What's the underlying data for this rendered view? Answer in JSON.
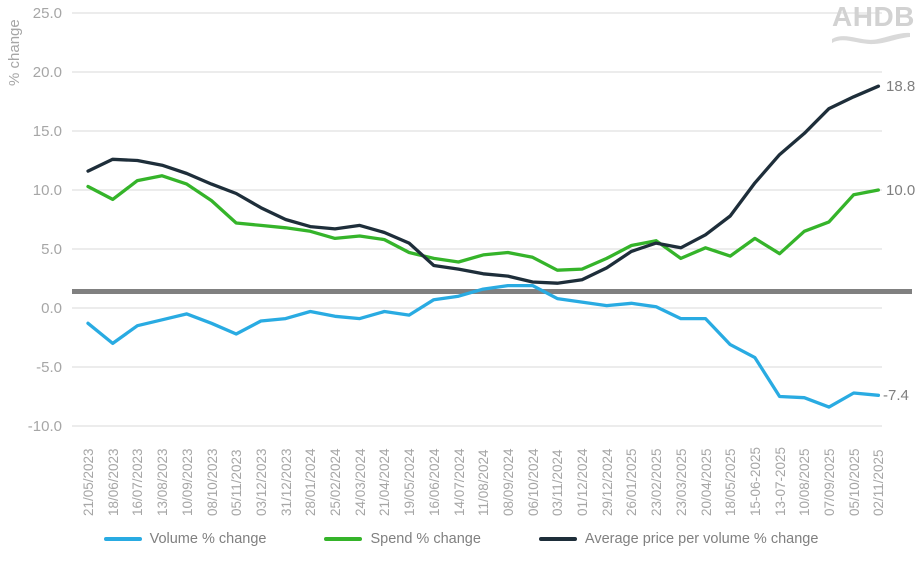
{
  "logo": {
    "text": "AHDB"
  },
  "y_axis": {
    "title": "% change",
    "ticks": [
      "25.0",
      "20.0",
      "15.0",
      "10.0",
      "5.0",
      "0.0",
      "-5.0",
      "-10.0"
    ],
    "tick_values": [
      25,
      20,
      15,
      10,
      5,
      0,
      -5,
      -10
    ]
  },
  "end_labels": {
    "avg_price": "18.8",
    "spend": "10.0",
    "volume": "-7.4"
  },
  "colors": {
    "grid": "#D9D9D9",
    "reference_line": "#808080",
    "axis_text": "#A6A6A6",
    "end_label_text": "#7F7F7F",
    "logo": "#D2D2D2",
    "volume": "#29ABE2",
    "spend": "#35B42A",
    "avg_price": "#1E2E3A"
  },
  "chart_data": {
    "type": "line",
    "title": "",
    "xlabel": "",
    "ylabel": "% change",
    "ylim": [
      -10,
      25
    ],
    "grid": true,
    "legend_position": "bottom",
    "reference_line": 1.4,
    "categories": [
      "21/05/2023",
      "18/06/2023",
      "16/07/2023",
      "13/08/2023",
      "10/09/2023",
      "08/10/2023",
      "05/11/2023",
      "03/12/2023",
      "31/12/2023",
      "28/01/2024",
      "25/02/2024",
      "24/03/2024",
      "21/04/2024",
      "19/05/2024",
      "16/06/2024",
      "14/07/2024",
      "11/08/2024",
      "08/09/2024",
      "06/10/2024",
      "03/11/2024",
      "01/12/2024",
      "29/12/2024",
      "26/01/2025",
      "23/02/2025",
      "23/03/2025",
      "20/04/2025",
      "18/05/2025",
      "15-06-2025",
      "13-07-2025",
      "10/08/2025",
      "07/09/2025",
      "05/10/2025",
      "02/11/2025"
    ],
    "series": [
      {
        "name": "Volume % change",
        "color": "#29ABE2",
        "end_label": "-7.4",
        "values": [
          -1.3,
          -3.0,
          -1.5,
          -1.0,
          -0.5,
          -1.3,
          -2.2,
          -1.1,
          -0.9,
          -0.3,
          -0.7,
          -0.9,
          -0.3,
          -0.6,
          0.7,
          1.0,
          1.6,
          1.9,
          1.9,
          0.8,
          0.5,
          0.2,
          0.4,
          0.1,
          -0.9,
          -0.9,
          -3.1,
          -4.2,
          -7.5,
          -7.6,
          -8.4,
          -7.2,
          -7.4
        ]
      },
      {
        "name": "Spend % change",
        "color": "#35B42A",
        "end_label": "10.0",
        "values": [
          10.3,
          9.2,
          10.8,
          11.2,
          10.5,
          9.1,
          7.2,
          7.0,
          6.8,
          6.5,
          5.9,
          6.1,
          5.8,
          4.7,
          4.2,
          3.9,
          4.5,
          4.7,
          4.3,
          3.2,
          3.3,
          4.2,
          5.3,
          5.7,
          4.2,
          5.1,
          4.4,
          5.9,
          4.6,
          6.5,
          7.3,
          9.6,
          10.0
        ]
      },
      {
        "name": "Average price per volume % change",
        "color": "#1E2E3A",
        "end_label": "18.8",
        "values": [
          11.6,
          12.6,
          12.5,
          12.1,
          11.4,
          10.5,
          9.7,
          8.5,
          7.5,
          6.9,
          6.7,
          7.0,
          6.4,
          5.5,
          3.6,
          3.3,
          2.9,
          2.7,
          2.2,
          2.1,
          2.4,
          3.4,
          4.8,
          5.5,
          5.1,
          6.2,
          7.8,
          10.6,
          13.0,
          14.8,
          16.9,
          17.9,
          18.8
        ]
      }
    ]
  }
}
